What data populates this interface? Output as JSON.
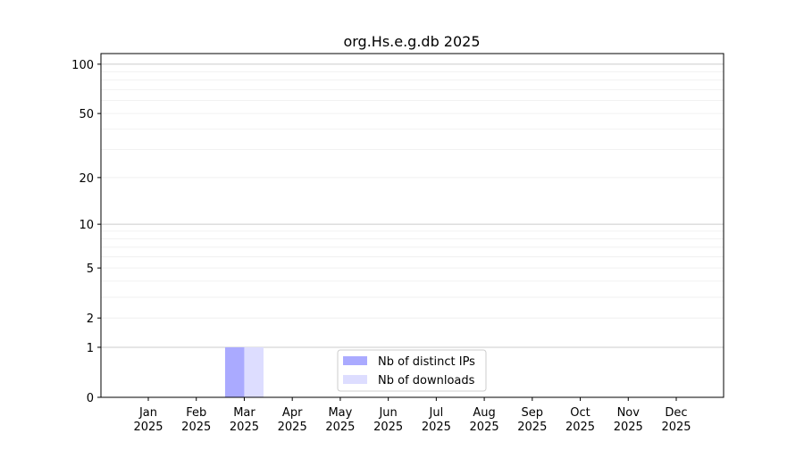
{
  "chart_data": {
    "type": "bar",
    "title": "org.Hs.e.g.db 2025",
    "xlabel": "",
    "ylabel": "",
    "yscale": "log(y+1)",
    "ylim": [
      0,
      116
    ],
    "yticks": [
      0,
      1,
      2,
      5,
      10,
      20,
      50,
      100
    ],
    "ytick_labels": [
      "0",
      "1",
      "2",
      "5",
      "10",
      "20",
      "50",
      "100"
    ],
    "categories": [
      "Jan\n2025",
      "Feb\n2025",
      "Mar\n2025",
      "Apr\n2025",
      "May\n2025",
      "Jun\n2025",
      "Jul\n2025",
      "Aug\n2025",
      "Sep\n2025",
      "Oct\n2025",
      "Nov\n2025",
      "Dec\n2025"
    ],
    "grid": true,
    "legend_position": "bottom-center",
    "series": [
      {
        "name": "Nb of distinct IPs",
        "color": "#aaaaff",
        "values": [
          0,
          0,
          1,
          0,
          0,
          0,
          0,
          0,
          0,
          0,
          0,
          0
        ]
      },
      {
        "name": "Nb of downloads",
        "color": "#ddddff",
        "values": [
          0,
          0,
          1,
          0,
          0,
          0,
          0,
          0,
          0,
          0,
          0,
          0
        ]
      }
    ]
  }
}
